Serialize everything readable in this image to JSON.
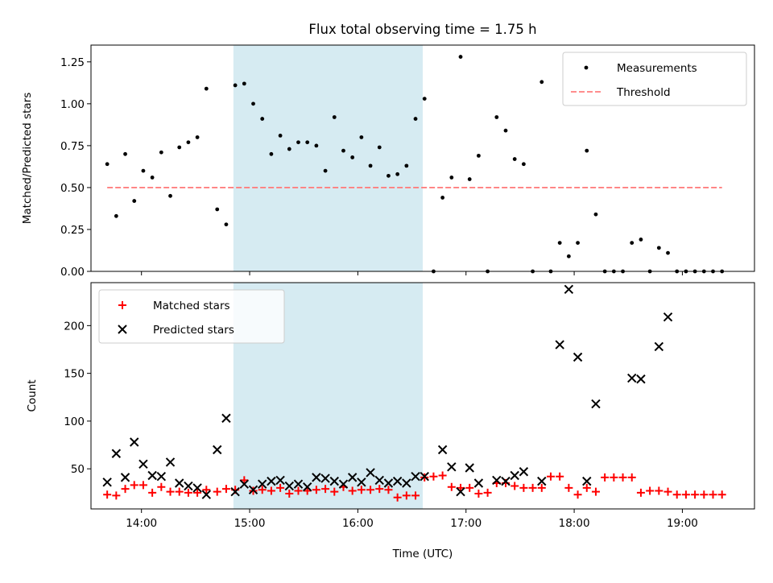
{
  "chart_data": [
    {
      "type": "scatter",
      "title": "Flux total observing time = 1.75 h",
      "xlabel": "",
      "ylabel": "Matched/Predicted stars",
      "xlim": [
        "13:32",
        "19:40"
      ],
      "ylim": [
        0,
        1.35
      ],
      "xticks": [
        "14:00",
        "15:00",
        "16:00",
        "17:00",
        "18:00",
        "19:00"
      ],
      "yticks": [
        0,
        0.25,
        0.5,
        0.75,
        1.0,
        1.25
      ],
      "ytick_labels": [
        "0.00",
        "0.25",
        "0.50",
        "0.75",
        "1.00",
        "1.25"
      ],
      "legend_position": "top-right",
      "shaded_interval": {
        "start": "14:51",
        "end": "16:36",
        "color": "#add8e6"
      },
      "series": [
        {
          "name": "Measurements",
          "marker": "dot",
          "color": "#000000",
          "x": [
            "13:41",
            "13:46",
            "13:51",
            "13:56",
            "14:01",
            "14:06",
            "14:11",
            "14:16",
            "14:21",
            "14:26",
            "14:31",
            "14:36",
            "14:42",
            "14:47",
            "14:52",
            "14:57",
            "15:02",
            "15:07",
            "15:12",
            "15:17",
            "15:22",
            "15:27",
            "15:32",
            "15:37",
            "15:42",
            "15:47",
            "15:52",
            "15:57",
            "16:02",
            "16:07",
            "16:12",
            "16:17",
            "16:22",
            "16:27",
            "16:32",
            "16:37",
            "16:42",
            "16:47",
            "16:52",
            "16:57",
            "17:02",
            "17:07",
            "17:12",
            "17:17",
            "17:22",
            "17:27",
            "17:32",
            "17:37",
            "17:42",
            "17:47",
            "17:52",
            "17:57",
            "18:02",
            "18:07",
            "18:12",
            "18:17",
            "18:22",
            "18:27",
            "18:32",
            "18:37",
            "18:42",
            "18:47",
            "18:52",
            "18:57",
            "19:02",
            "19:07",
            "19:12",
            "19:17",
            "19:22"
          ],
          "y": [
            0.64,
            0.33,
            0.7,
            0.42,
            0.6,
            0.56,
            0.71,
            0.45,
            0.74,
            0.77,
            0.8,
            1.09,
            0.37,
            0.28,
            1.11,
            1.12,
            1.0,
            0.91,
            0.7,
            0.81,
            0.73,
            0.77,
            0.77,
            0.75,
            0.6,
            0.92,
            0.72,
            0.68,
            0.8,
            0.63,
            0.74,
            0.57,
            0.58,
            0.63,
            0.91,
            1.03,
            0.0,
            0.44,
            0.56,
            1.28,
            0.55,
            0.69,
            0.0,
            0.92,
            0.84,
            0.67,
            0.64,
            0.0,
            1.13,
            0.0,
            0.17,
            0.09,
            0.17,
            0.72,
            0.34,
            0.0,
            0.0,
            0.0,
            0.17,
            0.19,
            0.0,
            0.14,
            0.11,
            0.0,
            0.0,
            0.0,
            0.0,
            0.0,
            0.0
          ]
        },
        {
          "name": "Threshold",
          "line": "dashed",
          "color": "#ff7f7f",
          "x": [
            "13:41",
            "19:22"
          ],
          "y": [
            0.5,
            0.5
          ]
        }
      ]
    },
    {
      "type": "scatter",
      "title": "",
      "xlabel": "Time (UTC)",
      "ylabel": "Count",
      "xlim": [
        "13:32",
        "19:40"
      ],
      "ylim": [
        8,
        245
      ],
      "xticks": [
        "14:00",
        "15:00",
        "16:00",
        "17:00",
        "18:00",
        "19:00"
      ],
      "yticks": [
        50,
        100,
        150,
        200
      ],
      "ytick_labels": [
        "50",
        "100",
        "150",
        "200"
      ],
      "legend_position": "top-left",
      "shaded_interval": {
        "start": "14:51",
        "end": "16:36",
        "color": "#add8e6"
      },
      "series": [
        {
          "name": "Matched stars",
          "marker": "plus",
          "color": "#ff0000",
          "x": [
            "13:41",
            "13:46",
            "13:51",
            "13:56",
            "14:01",
            "14:06",
            "14:11",
            "14:16",
            "14:21",
            "14:26",
            "14:31",
            "14:36",
            "14:42",
            "14:47",
            "14:52",
            "14:57",
            "15:02",
            "15:07",
            "15:12",
            "15:17",
            "15:22",
            "15:27",
            "15:32",
            "15:37",
            "15:42",
            "15:47",
            "15:52",
            "15:57",
            "16:02",
            "16:07",
            "16:12",
            "16:17",
            "16:22",
            "16:27",
            "16:32",
            "16:37",
            "16:42",
            "16:47",
            "16:52",
            "16:57",
            "17:02",
            "17:07",
            "17:12",
            "17:17",
            "17:22",
            "17:27",
            "17:32",
            "17:37",
            "17:42",
            "17:47",
            "17:52",
            "17:57",
            "18:02",
            "18:07",
            "18:12",
            "18:17",
            "18:22",
            "18:27",
            "18:32",
            "18:37",
            "18:42",
            "18:47",
            "18:52",
            "18:57",
            "19:02",
            "19:07",
            "19:12",
            "19:17",
            "19:22"
          ],
          "y": [
            23,
            22,
            29,
            33,
            33,
            25,
            31,
            26,
            26,
            25,
            25,
            28,
            26,
            29,
            28,
            38,
            27,
            28,
            27,
            30,
            24,
            27,
            27,
            28,
            29,
            26,
            31,
            27,
            28,
            28,
            29,
            28,
            20,
            22,
            22,
            41,
            42,
            43,
            31,
            30,
            30,
            24,
            25,
            35,
            35,
            32,
            30,
            30,
            30,
            42,
            42,
            30,
            23,
            30,
            26,
            41,
            41,
            41,
            41,
            25,
            27,
            27,
            26,
            23,
            23,
            23,
            23,
            23,
            23
          ]
        },
        {
          "name": "Predicted stars",
          "marker": "x",
          "color": "#000000",
          "x": [
            "13:41",
            "13:46",
            "13:51",
            "13:56",
            "14:01",
            "14:06",
            "14:11",
            "14:16",
            "14:21",
            "14:26",
            "14:31",
            "14:36",
            "14:42",
            "14:47",
            "14:52",
            "14:57",
            "15:02",
            "15:07",
            "15:12",
            "15:17",
            "15:22",
            "15:27",
            "15:32",
            "15:37",
            "15:42",
            "15:47",
            "15:52",
            "15:57",
            "16:02",
            "16:07",
            "16:12",
            "16:17",
            "16:22",
            "16:27",
            "16:32",
            "16:37",
            "16:47",
            "16:52",
            "16:57",
            "17:02",
            "17:07",
            "17:17",
            "17:22",
            "17:27",
            "17:32",
            "17:42",
            "17:52",
            "17:57",
            "18:02",
            "18:07",
            "18:12",
            "18:32",
            "18:37",
            "18:47",
            "18:52"
          ],
          "y": [
            36,
            66,
            41,
            78,
            55,
            43,
            42,
            57,
            35,
            32,
            30,
            23,
            70,
            103,
            26,
            34,
            28,
            34,
            37,
            38,
            32,
            34,
            31,
            41,
            40,
            37,
            34,
            41,
            36,
            46,
            38,
            35,
            37,
            35,
            42,
            42,
            70,
            52,
            26,
            51,
            35,
            38,
            37,
            43,
            47,
            37,
            180,
            238,
            167,
            37,
            118,
            145,
            144,
            178,
            209
          ]
        }
      ]
    }
  ]
}
